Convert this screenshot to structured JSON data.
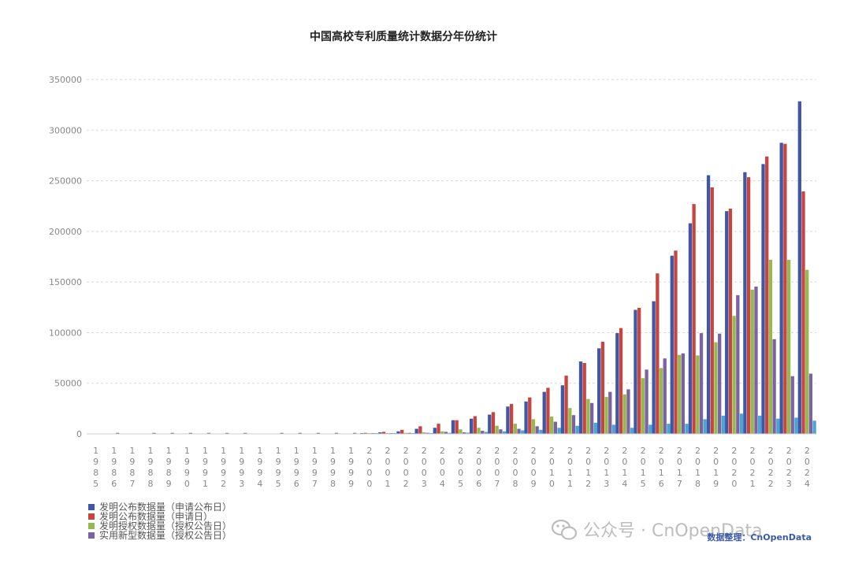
{
  "chart_data": {
    "type": "bar",
    "title": "中国高校专利质量统计数据分年份统计",
    "xlabel": "",
    "ylabel": "",
    "ylim": [
      0,
      350000
    ],
    "yticks": [
      0,
      50000,
      100000,
      150000,
      200000,
      250000,
      300000,
      350000
    ],
    "grid": true,
    "legend_position": "bottom-left",
    "categories": [
      "1985",
      "1986",
      "1987",
      "1988",
      "1989",
      "1990",
      "1991",
      "1992",
      "1993",
      "1994",
      "1995",
      "1996",
      "1997",
      "1998",
      "1999",
      "2000",
      "2001",
      "2002",
      "2003",
      "2004",
      "2005",
      "2006",
      "2007",
      "2008",
      "2009",
      "2010",
      "2011",
      "2012",
      "2013",
      "2014",
      "2015",
      "2016",
      "2017",
      "2018",
      "2019",
      "2020",
      "2021",
      "2022",
      "2023",
      "2024"
    ],
    "series": [
      {
        "name": "发明公布数据量（申请公布日）",
        "color": "#3f57a5",
        "values": [
          0,
          0,
          0,
          0,
          0,
          0,
          0,
          0,
          0,
          0,
          0,
          0,
          0,
          0,
          0,
          500,
          1500,
          2500,
          5000,
          6000,
          13500,
          15000,
          19000,
          27000,
          32000,
          41500,
          48000,
          71500,
          84500,
          99500,
          122500,
          131000,
          176000,
          208000,
          255500,
          220000,
          258500,
          266500,
          287500,
          328500
        ]
      },
      {
        "name": "发明公布数据量（申请日）",
        "color": "#c6453f",
        "values": [
          0,
          0,
          0,
          0,
          0,
          0,
          0,
          0,
          0,
          0,
          0,
          0,
          0,
          0,
          0,
          1000,
          2000,
          4000,
          7500,
          10000,
          13500,
          17500,
          21500,
          29500,
          36000,
          45500,
          57500,
          70000,
          91000,
          104500,
          124500,
          158500,
          181000,
          227000,
          243500,
          222500,
          253500,
          274000,
          286500,
          239500
        ]
      },
      {
        "name": "发明授权数据量（授权公告日）",
        "color": "#95b94e",
        "values": [
          0,
          0,
          0,
          0,
          0,
          0,
          0,
          0,
          0,
          0,
          0,
          0,
          0,
          0,
          0,
          200,
          500,
          1000,
          1500,
          2500,
          4500,
          6000,
          8000,
          10000,
          14500,
          17000,
          25500,
          34500,
          36500,
          39000,
          55000,
          65000,
          78000,
          77500,
          90500,
          116500,
          142500,
          172000,
          172000,
          162000
        ]
      },
      {
        "name": "实用新型数据量（授权公告日）",
        "color": "#7d62a3",
        "values": [
          0,
          1000,
          0,
          1000,
          1000,
          1000,
          1000,
          1000,
          1000,
          0,
          1000,
          1000,
          1000,
          1000,
          1000,
          500,
          500,
          1000,
          1000,
          2000,
          1500,
          3000,
          4500,
          5000,
          7500,
          12000,
          18500,
          30500,
          41500,
          44000,
          63500,
          74500,
          79500,
          99500,
          99000,
          137000,
          145500,
          93500,
          57000,
          59500
        ]
      },
      {
        "color": "#4aa6d1",
        "values": [
          0,
          0,
          0,
          0,
          0,
          0,
          0,
          0,
          0,
          0,
          0,
          0,
          0,
          0,
          0,
          100,
          300,
          500,
          800,
          1000,
          1200,
          2000,
          2500,
          3500,
          4000,
          6000,
          8000,
          11000,
          9000,
          6000,
          9000,
          10000,
          10000,
          14500,
          18000,
          20000,
          18000,
          15000,
          16000,
          13000
        ]
      }
    ]
  },
  "credit": "数据整理：CnOpenData",
  "watermark": "公众号 · CnOpenData"
}
